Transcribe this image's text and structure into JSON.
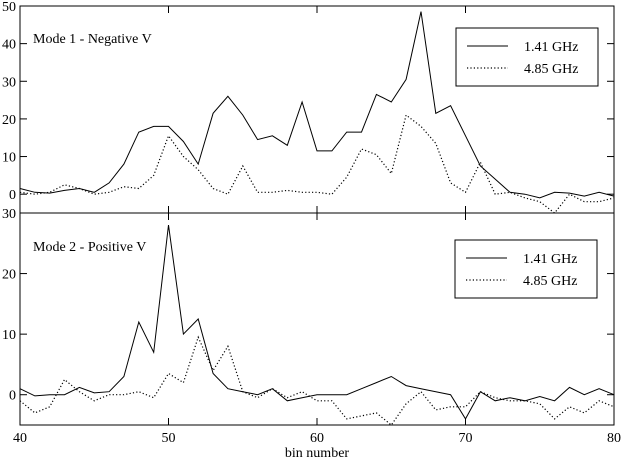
{
  "chart_data": [
    {
      "type": "line",
      "title": "Mode 1 - Negative V",
      "xlabel": "",
      "ylabel": "",
      "xlim": [
        40,
        80
      ],
      "ylim": [
        -5,
        50
      ],
      "yticks": [
        "0",
        "10",
        "20",
        "30",
        "40",
        "50"
      ],
      "ytick_values": [
        0,
        10,
        20,
        30,
        40,
        50
      ],
      "grid": false,
      "legend_position": "top-right",
      "x": [
        40,
        41,
        42,
        43,
        44,
        45,
        46,
        47,
        48,
        49,
        50,
        51,
        52,
        53,
        54,
        55,
        56,
        57,
        58,
        59,
        60,
        61,
        62,
        63,
        64,
        65,
        66,
        67,
        68,
        69,
        70,
        71,
        72,
        73,
        74,
        75,
        76,
        77,
        78,
        79,
        80
      ],
      "series": [
        {
          "name": "1.41 GHz",
          "style": "solid",
          "values": [
            1.5,
            0.5,
            0.3,
            1.0,
            1.5,
            0.5,
            3.0,
            8.0,
            16.5,
            18.0,
            18.0,
            14.0,
            8.0,
            21.5,
            26.0,
            21.0,
            14.5,
            15.5,
            13.0,
            24.5,
            11.5,
            11.5,
            16.5,
            16.5,
            26.5,
            24.5,
            30.5,
            48.5,
            21.5,
            23.5,
            15.5,
            7.5,
            4.0,
            0.5,
            0.0,
            -1.0,
            0.5,
            0.3,
            -0.5,
            0.5,
            -0.5
          ]
        },
        {
          "name": "4.85 GHz",
          "style": "dotted",
          "values": [
            0.5,
            0.0,
            0.5,
            2.5,
            1.5,
            0.0,
            0.5,
            2.0,
            1.5,
            5.0,
            15.5,
            10.0,
            6.5,
            1.5,
            0.0,
            7.5,
            0.5,
            0.5,
            1.0,
            0.5,
            0.5,
            0.0,
            4.5,
            12.0,
            10.5,
            5.5,
            21.0,
            18.0,
            13.5,
            3.0,
            0.5,
            8.5,
            0.0,
            0.5,
            -1.0,
            -2.0,
            -5.0,
            0.0,
            -2.0,
            -2.0,
            -1.0
          ]
        }
      ]
    },
    {
      "type": "line",
      "title": "Mode 2 - Positive V",
      "xlabel": "bin number",
      "ylabel": "",
      "xlim": [
        40,
        80
      ],
      "ylim": [
        -5,
        30
      ],
      "yticks": [
        "0",
        "10",
        "20",
        "30"
      ],
      "ytick_values": [
        0,
        10,
        20,
        30
      ],
      "xticks": [
        "40",
        "50",
        "60",
        "70",
        "80"
      ],
      "xtick_values": [
        40,
        50,
        60,
        70,
        80
      ],
      "grid": false,
      "legend_position": "top-right",
      "x": [
        40,
        41,
        42,
        43,
        44,
        45,
        46,
        47,
        48,
        49,
        50,
        51,
        52,
        53,
        54,
        55,
        56,
        57,
        58,
        59,
        60,
        61,
        62,
        63,
        64,
        65,
        66,
        67,
        68,
        69,
        70,
        71,
        72,
        73,
        74,
        75,
        76,
        77,
        78,
        79,
        80
      ],
      "series": [
        {
          "name": "1.41 GHz",
          "style": "solid",
          "values": [
            1.0,
            -0.2,
            0.0,
            0.0,
            1.2,
            0.3,
            0.5,
            3.0,
            12.0,
            7.0,
            28.0,
            10.0,
            12.5,
            3.5,
            1.0,
            0.5,
            0.0,
            1.0,
            -1.0,
            -0.5,
            0.0,
            0.0,
            0.0,
            1.0,
            2.0,
            3.0,
            1.5,
            1.0,
            0.5,
            0.0,
            -4.0,
            0.5,
            -1.0,
            -0.5,
            -1.0,
            -0.3,
            -1.0,
            1.2,
            0.0,
            1.0,
            0.0
          ]
        },
        {
          "name": "4.85 GHz",
          "style": "dotted",
          "values": [
            -1.0,
            -3.0,
            -2.0,
            2.5,
            0.5,
            -1.0,
            0.0,
            0.0,
            0.5,
            -0.5,
            3.5,
            2.0,
            9.5,
            4.0,
            8.0,
            0.5,
            -0.5,
            1.0,
            -0.5,
            0.5,
            -1.0,
            -1.0,
            -4.0,
            -3.5,
            -3.0,
            -5.0,
            -1.5,
            0.5,
            -2.5,
            -2.0,
            -2.0,
            0.5,
            -0.5,
            -1.0,
            -1.0,
            -1.5,
            -4.0,
            -2.0,
            -3.0,
            -1.0,
            -2.0
          ]
        }
      ]
    }
  ]
}
